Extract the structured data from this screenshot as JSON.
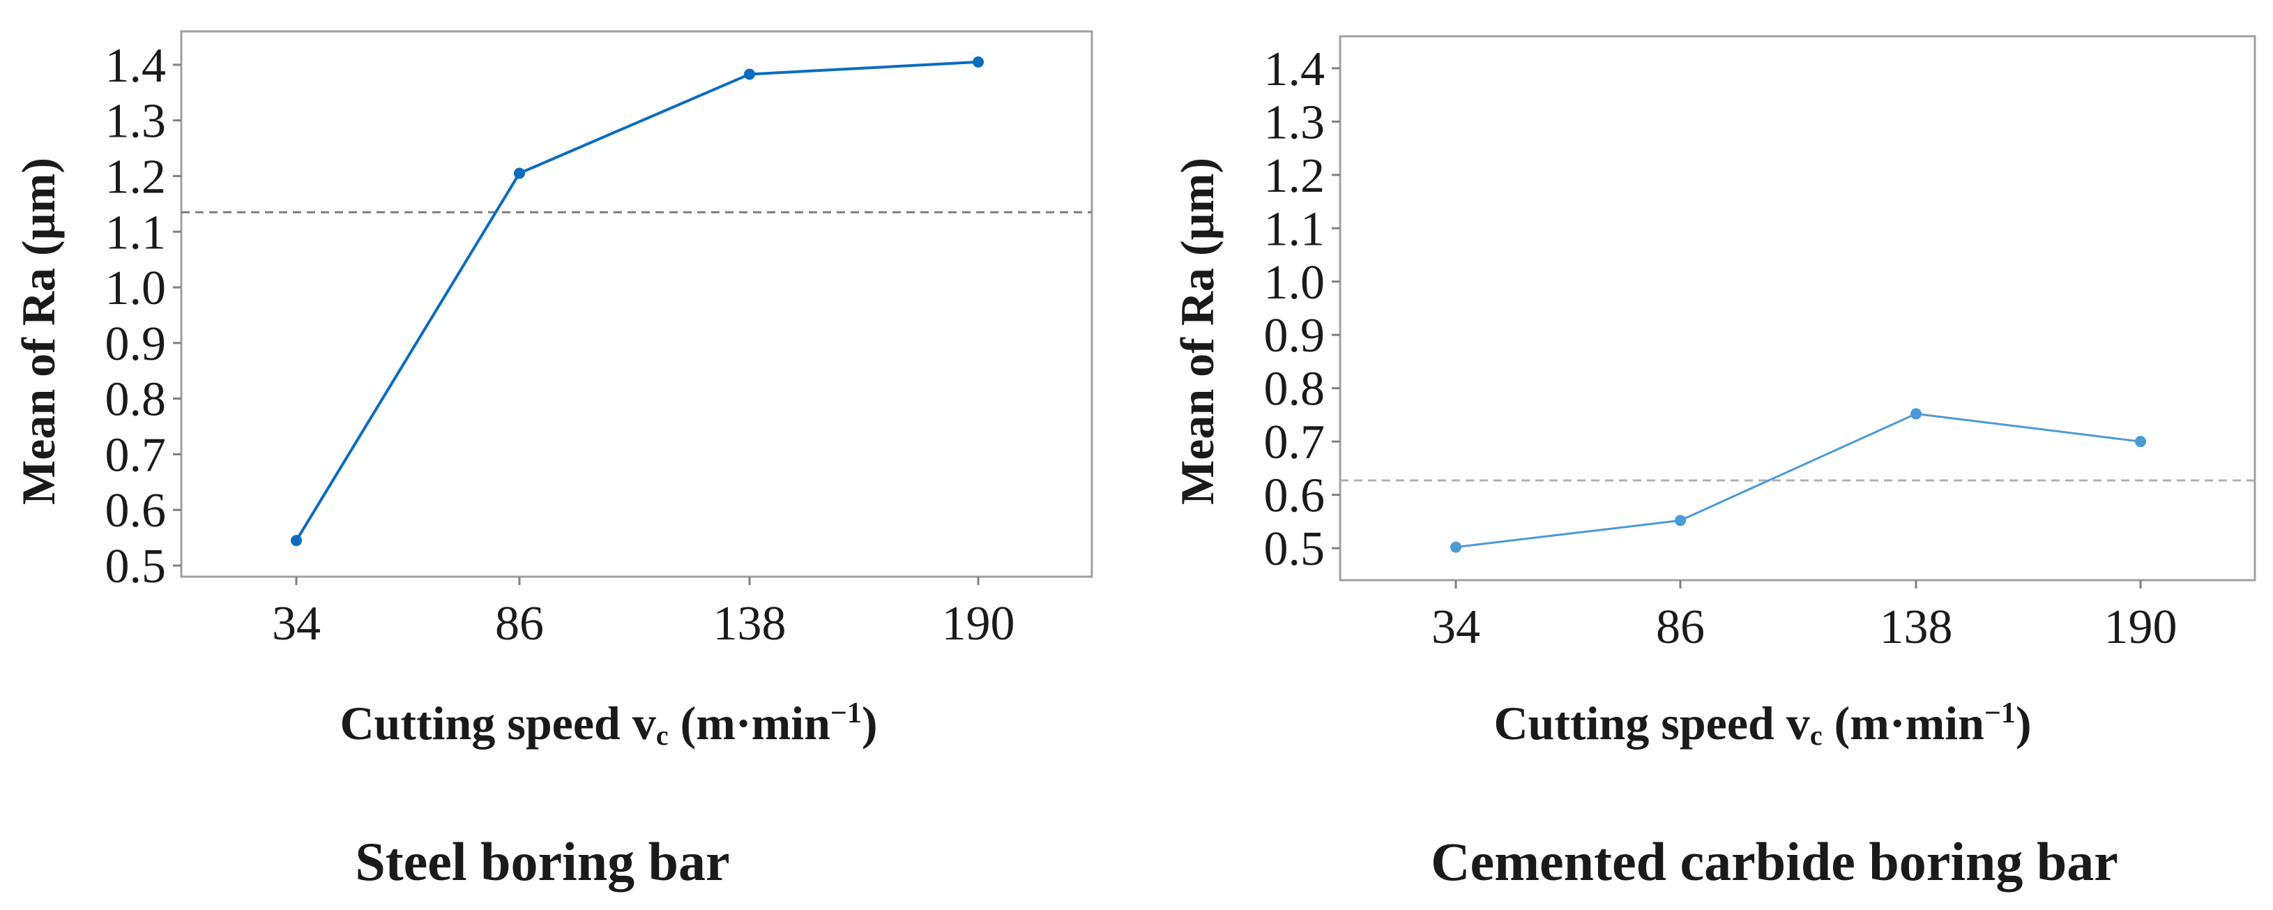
{
  "chart_data": [
    {
      "type": "line",
      "title": "Steel boring bar",
      "xlabel": "Cutting speed vc (m·min⁻¹)",
      "xlabel_main": "Cutting speed v",
      "xlabel_sub": "c",
      "xlabel_unit": " (m·min",
      "xlabel_sup": "−1",
      "xlabel_close": ")",
      "ylabel": "Mean of Ra (µm)",
      "categories": [
        "34",
        "86",
        "138",
        "190"
      ],
      "values": [
        0.545,
        1.205,
        1.383,
        1.405
      ],
      "mean_line": 1.135,
      "ylim": [
        0.48,
        1.46
      ],
      "yticks": [
        0.5,
        0.6,
        0.7,
        0.8,
        0.9,
        1.0,
        1.1,
        1.2,
        1.3,
        1.4
      ],
      "ytick_labels": [
        "0.5",
        "0.6",
        "0.7",
        "0.8",
        "0.9",
        "1.0",
        "1.1",
        "1.2",
        "1.3",
        "1.4"
      ],
      "line_color": "#0a6cbf",
      "mean_line_color": "#7f7f7f"
    },
    {
      "type": "line",
      "title": "Cemented carbide boring bar",
      "xlabel": "Cutting speed vc (m·min⁻¹)",
      "xlabel_main": "Cutting speed v",
      "xlabel_sub": "c",
      "xlabel_unit": " (m·min",
      "xlabel_sup": "−1",
      "xlabel_close": ")",
      "ylabel": "Mean of Ra (µm)",
      "categories": [
        "34",
        "86",
        "138",
        "190"
      ],
      "values": [
        0.502,
        0.552,
        0.752,
        0.7
      ],
      "mean_line": 0.627,
      "ylim": [
        0.44,
        1.46
      ],
      "yticks": [
        0.5,
        0.6,
        0.7,
        0.8,
        0.9,
        1.0,
        1.1,
        1.2,
        1.3,
        1.4
      ],
      "ytick_labels": [
        "0.5",
        "0.6",
        "0.7",
        "0.8",
        "0.9",
        "1.0",
        "1.1",
        "1.2",
        "1.3",
        "1.4"
      ],
      "line_color": "#4a9ad6",
      "mean_line_color": "#b0b0b0"
    }
  ]
}
